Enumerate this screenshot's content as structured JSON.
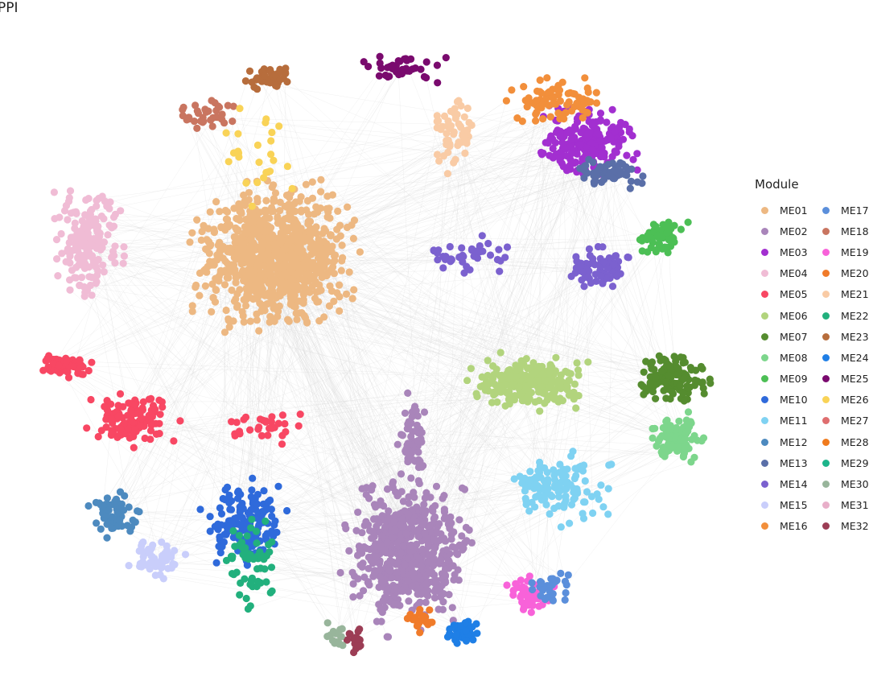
{
  "title": "PPI",
  "legend": {
    "title": "Module",
    "items": [
      {
        "label": "ME01",
        "color": "#EDB882"
      },
      {
        "label": "ME02",
        "color": "#A985BA"
      },
      {
        "label": "ME03",
        "color": "#A22FD0"
      },
      {
        "label": "ME04",
        "color": "#F0BCD5"
      },
      {
        "label": "ME05",
        "color": "#F84763"
      },
      {
        "label": "ME06",
        "color": "#B2D47D"
      },
      {
        "label": "ME07",
        "color": "#558C2F"
      },
      {
        "label": "ME08",
        "color": "#7DD68C"
      },
      {
        "label": "ME09",
        "color": "#4CBF55"
      },
      {
        "label": "ME10",
        "color": "#2F6ADB"
      },
      {
        "label": "ME11",
        "color": "#7FD2F2"
      },
      {
        "label": "ME12",
        "color": "#4D8ABF"
      },
      {
        "label": "ME13",
        "color": "#5A6FA8"
      },
      {
        "label": "ME14",
        "color": "#7B61CF"
      },
      {
        "label": "ME15",
        "color": "#C9CEFB"
      },
      {
        "label": "ME16",
        "color": "#F28F3B"
      },
      {
        "label": "ME17",
        "color": "#5B8FDB"
      },
      {
        "label": "ME18",
        "color": "#C97560"
      },
      {
        "label": "ME19",
        "color": "#F862D9"
      },
      {
        "label": "ME20",
        "color": "#F07B2A"
      },
      {
        "label": "ME21",
        "color": "#F9CBA5"
      },
      {
        "label": "ME22",
        "color": "#22B07D"
      },
      {
        "label": "ME23",
        "color": "#B76D3C"
      },
      {
        "label": "ME24",
        "color": "#1F7FE6"
      },
      {
        "label": "ME25",
        "color": "#7A0A6E"
      },
      {
        "label": "ME26",
        "color": "#F9D357"
      },
      {
        "label": "ME27",
        "color": "#DF6E6F"
      },
      {
        "label": "ME28",
        "color": "#F07B1D"
      },
      {
        "label": "ME29",
        "color": "#1DB58B"
      },
      {
        "label": "ME30",
        "color": "#98B59B"
      },
      {
        "label": "ME31",
        "color": "#E8AFC9"
      },
      {
        "label": "ME32",
        "color": "#9C3D55"
      }
    ]
  },
  "edge_color": "#d9d9d9"
}
